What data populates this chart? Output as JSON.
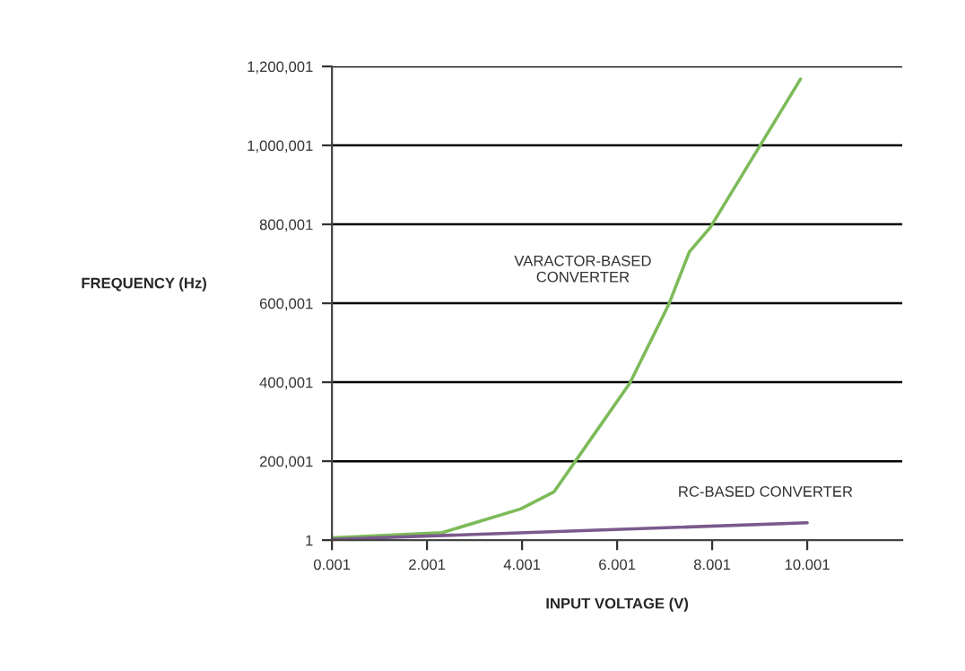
{
  "chart_data": {
    "type": "line",
    "xlabel": "INPUT VOLTAGE (V)",
    "ylabel": "FREQUENCY (Hz)",
    "series": [
      {
        "name": "VARACTOR-BASED\nCONVERTER",
        "color": "#7dbb5a",
        "x": [
          0.001,
          2.32,
          3.97,
          4.67,
          5.39,
          6.27,
          7.08,
          7.52,
          7.96,
          9.86
        ],
        "values": [
          6000,
          19000,
          79000,
          122000,
          246000,
          398000,
          595000,
          730000,
          792000,
          1168000
        ]
      },
      {
        "name": "RC-BASED CONVERTER",
        "color": "#7a5a8c",
        "x": [
          0.001,
          10.001
        ],
        "values": [
          2000,
          44000
        ]
      }
    ],
    "xlim": [
      0.001,
      12.001
    ],
    "xticks": [
      0.001,
      2.001,
      4.001,
      6.001,
      8.001,
      10.001
    ],
    "ylim": [
      1,
      1200001
    ],
    "yticks": [
      1,
      {
        "value": 200001,
        "label": "200,001"
      },
      {
        "value": 400001,
        "label": "400,001"
      },
      {
        "value": 600001,
        "label": "600,001"
      },
      {
        "value": 800001,
        "label": "800,001"
      },
      {
        "value": 1000001,
        "label": "1,000,001"
      },
      {
        "value": 1200001,
        "label": "1,200,001"
      }
    ],
    "grid": "y",
    "marker": "none",
    "line_style": "solid"
  }
}
